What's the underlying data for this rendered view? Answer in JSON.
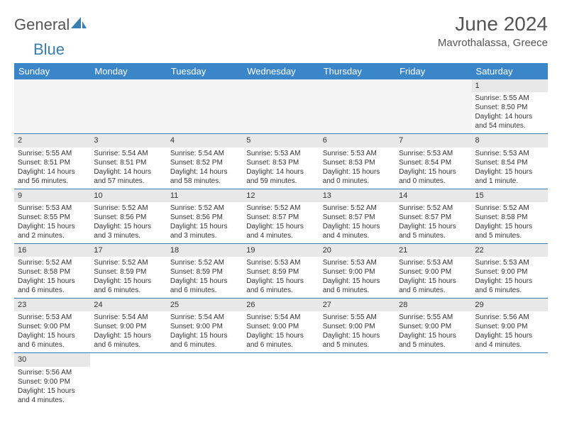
{
  "logo": {
    "part1": "General",
    "part2": "Blue"
  },
  "title": "June 2024",
  "location": "Mavrothalassa, Greece",
  "colors": {
    "header_bg": "#3a86c8",
    "header_fg": "#ffffff",
    "cell_divider": "#3a7db0",
    "daynum_bg": "#e8e8e8",
    "text": "#333333",
    "logo_gray": "#555555",
    "logo_blue": "#3a7db0"
  },
  "weekdays": [
    "Sunday",
    "Monday",
    "Tuesday",
    "Wednesday",
    "Thursday",
    "Friday",
    "Saturday"
  ],
  "weeks": [
    [
      null,
      null,
      null,
      null,
      null,
      null,
      {
        "n": "1",
        "sr": "Sunrise: 5:55 AM",
        "ss": "Sunset: 8:50 PM",
        "d1": "Daylight: 14 hours",
        "d2": "and 54 minutes."
      }
    ],
    [
      {
        "n": "2",
        "sr": "Sunrise: 5:55 AM",
        "ss": "Sunset: 8:51 PM",
        "d1": "Daylight: 14 hours",
        "d2": "and 56 minutes."
      },
      {
        "n": "3",
        "sr": "Sunrise: 5:54 AM",
        "ss": "Sunset: 8:51 PM",
        "d1": "Daylight: 14 hours",
        "d2": "and 57 minutes."
      },
      {
        "n": "4",
        "sr": "Sunrise: 5:54 AM",
        "ss": "Sunset: 8:52 PM",
        "d1": "Daylight: 14 hours",
        "d2": "and 58 minutes."
      },
      {
        "n": "5",
        "sr": "Sunrise: 5:53 AM",
        "ss": "Sunset: 8:53 PM",
        "d1": "Daylight: 14 hours",
        "d2": "and 59 minutes."
      },
      {
        "n": "6",
        "sr": "Sunrise: 5:53 AM",
        "ss": "Sunset: 8:53 PM",
        "d1": "Daylight: 15 hours",
        "d2": "and 0 minutes."
      },
      {
        "n": "7",
        "sr": "Sunrise: 5:53 AM",
        "ss": "Sunset: 8:54 PM",
        "d1": "Daylight: 15 hours",
        "d2": "and 0 minutes."
      },
      {
        "n": "8",
        "sr": "Sunrise: 5:53 AM",
        "ss": "Sunset: 8:54 PM",
        "d1": "Daylight: 15 hours",
        "d2": "and 1 minute."
      }
    ],
    [
      {
        "n": "9",
        "sr": "Sunrise: 5:53 AM",
        "ss": "Sunset: 8:55 PM",
        "d1": "Daylight: 15 hours",
        "d2": "and 2 minutes."
      },
      {
        "n": "10",
        "sr": "Sunrise: 5:52 AM",
        "ss": "Sunset: 8:56 PM",
        "d1": "Daylight: 15 hours",
        "d2": "and 3 minutes."
      },
      {
        "n": "11",
        "sr": "Sunrise: 5:52 AM",
        "ss": "Sunset: 8:56 PM",
        "d1": "Daylight: 15 hours",
        "d2": "and 3 minutes."
      },
      {
        "n": "12",
        "sr": "Sunrise: 5:52 AM",
        "ss": "Sunset: 8:57 PM",
        "d1": "Daylight: 15 hours",
        "d2": "and 4 minutes."
      },
      {
        "n": "13",
        "sr": "Sunrise: 5:52 AM",
        "ss": "Sunset: 8:57 PM",
        "d1": "Daylight: 15 hours",
        "d2": "and 4 minutes."
      },
      {
        "n": "14",
        "sr": "Sunrise: 5:52 AM",
        "ss": "Sunset: 8:57 PM",
        "d1": "Daylight: 15 hours",
        "d2": "and 5 minutes."
      },
      {
        "n": "15",
        "sr": "Sunrise: 5:52 AM",
        "ss": "Sunset: 8:58 PM",
        "d1": "Daylight: 15 hours",
        "d2": "and 5 minutes."
      }
    ],
    [
      {
        "n": "16",
        "sr": "Sunrise: 5:52 AM",
        "ss": "Sunset: 8:58 PM",
        "d1": "Daylight: 15 hours",
        "d2": "and 6 minutes."
      },
      {
        "n": "17",
        "sr": "Sunrise: 5:52 AM",
        "ss": "Sunset: 8:59 PM",
        "d1": "Daylight: 15 hours",
        "d2": "and 6 minutes."
      },
      {
        "n": "18",
        "sr": "Sunrise: 5:52 AM",
        "ss": "Sunset: 8:59 PM",
        "d1": "Daylight: 15 hours",
        "d2": "and 6 minutes."
      },
      {
        "n": "19",
        "sr": "Sunrise: 5:53 AM",
        "ss": "Sunset: 8:59 PM",
        "d1": "Daylight: 15 hours",
        "d2": "and 6 minutes."
      },
      {
        "n": "20",
        "sr": "Sunrise: 5:53 AM",
        "ss": "Sunset: 9:00 PM",
        "d1": "Daylight: 15 hours",
        "d2": "and 6 minutes."
      },
      {
        "n": "21",
        "sr": "Sunrise: 5:53 AM",
        "ss": "Sunset: 9:00 PM",
        "d1": "Daylight: 15 hours",
        "d2": "and 6 minutes."
      },
      {
        "n": "22",
        "sr": "Sunrise: 5:53 AM",
        "ss": "Sunset: 9:00 PM",
        "d1": "Daylight: 15 hours",
        "d2": "and 6 minutes."
      }
    ],
    [
      {
        "n": "23",
        "sr": "Sunrise: 5:53 AM",
        "ss": "Sunset: 9:00 PM",
        "d1": "Daylight: 15 hours",
        "d2": "and 6 minutes."
      },
      {
        "n": "24",
        "sr": "Sunrise: 5:54 AM",
        "ss": "Sunset: 9:00 PM",
        "d1": "Daylight: 15 hours",
        "d2": "and 6 minutes."
      },
      {
        "n": "25",
        "sr": "Sunrise: 5:54 AM",
        "ss": "Sunset: 9:00 PM",
        "d1": "Daylight: 15 hours",
        "d2": "and 6 minutes."
      },
      {
        "n": "26",
        "sr": "Sunrise: 5:54 AM",
        "ss": "Sunset: 9:00 PM",
        "d1": "Daylight: 15 hours",
        "d2": "and 6 minutes."
      },
      {
        "n": "27",
        "sr": "Sunrise: 5:55 AM",
        "ss": "Sunset: 9:00 PM",
        "d1": "Daylight: 15 hours",
        "d2": "and 5 minutes."
      },
      {
        "n": "28",
        "sr": "Sunrise: 5:55 AM",
        "ss": "Sunset: 9:00 PM",
        "d1": "Daylight: 15 hours",
        "d2": "and 5 minutes."
      },
      {
        "n": "29",
        "sr": "Sunrise: 5:56 AM",
        "ss": "Sunset: 9:00 PM",
        "d1": "Daylight: 15 hours",
        "d2": "and 4 minutes."
      }
    ],
    [
      {
        "n": "30",
        "sr": "Sunrise: 5:56 AM",
        "ss": "Sunset: 9:00 PM",
        "d1": "Daylight: 15 hours",
        "d2": "and 4 minutes."
      },
      null,
      null,
      null,
      null,
      null,
      null
    ]
  ]
}
